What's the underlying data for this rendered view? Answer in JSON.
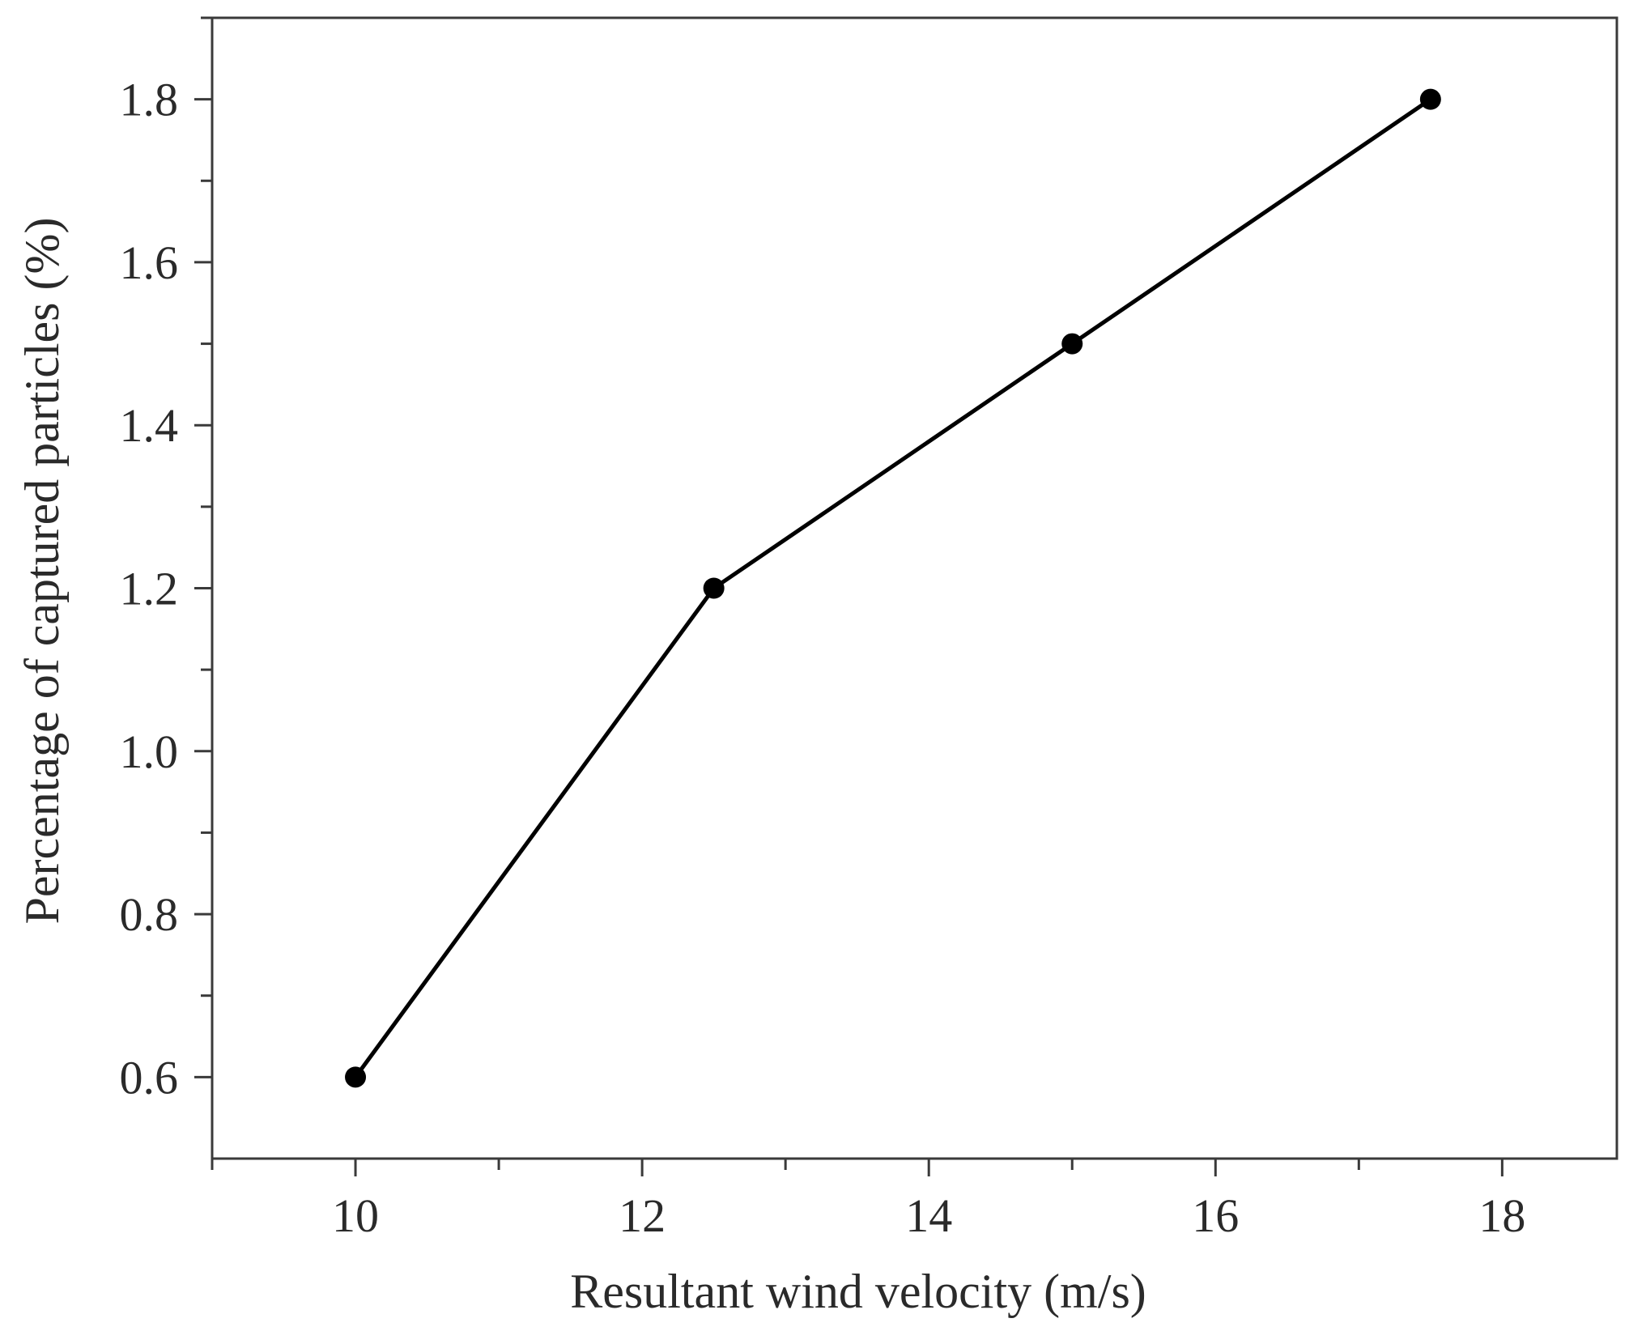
{
  "chart_data": {
    "type": "line",
    "title": "",
    "xlabel": "Resultant wind velocity (m/s)",
    "ylabel": "Percentage of captured particles (%)",
    "xlim": [
      9,
      18.8
    ],
    "ylim": [
      0.5,
      1.9
    ],
    "x_ticks": [
      10,
      12,
      14,
      16,
      18
    ],
    "x_tick_labels": [
      "10",
      "12",
      "14",
      "16",
      "18"
    ],
    "y_ticks": [
      0.6,
      0.8,
      1.0,
      1.2,
      1.4,
      1.6,
      1.8
    ],
    "y_tick_labels": [
      "0.6",
      "0.8",
      "1.0",
      "1.2",
      "1.4",
      "1.6",
      "1.8"
    ],
    "grid": false,
    "legend": "none",
    "series": [
      {
        "x": [
          10,
          12.5,
          15,
          17.5
        ],
        "values": [
          0.6,
          1.2,
          1.5,
          1.8
        ],
        "color": "#000000",
        "marker": "circle"
      }
    ]
  }
}
